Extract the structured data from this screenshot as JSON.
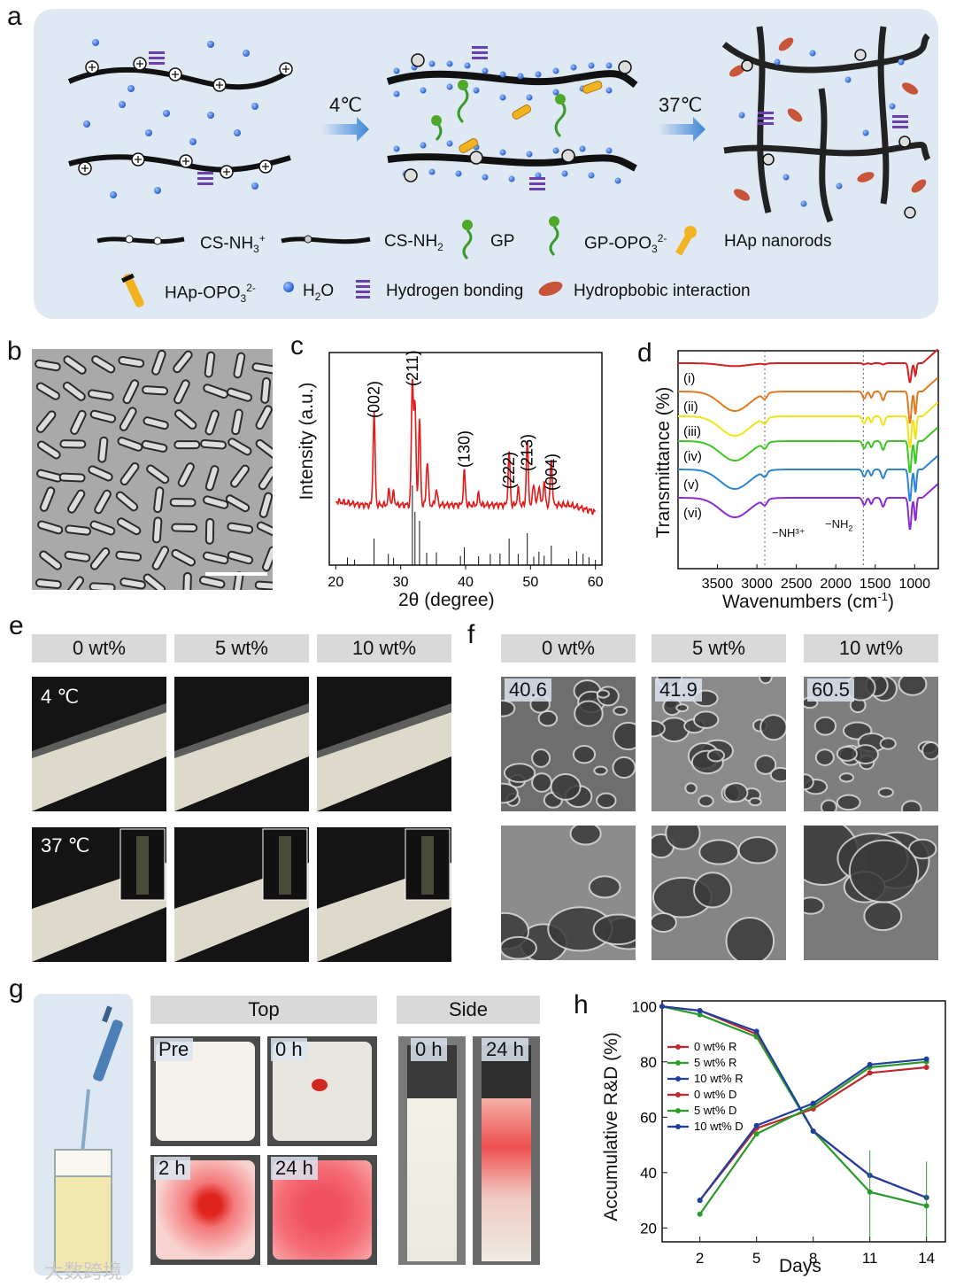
{
  "panels": {
    "a": "a",
    "b": "b",
    "c": "c",
    "d": "d",
    "e": "e",
    "f": "f",
    "g": "g",
    "h": "h"
  },
  "schematic": {
    "step1": "4℃",
    "step2": "37℃",
    "legend": [
      {
        "key": "cs_nh3",
        "label": "CS-NH",
        "sub": "3",
        "sup": "+"
      },
      {
        "key": "cs_nh2",
        "label": "CS-NH",
        "sub": "2",
        "sup": ""
      },
      {
        "key": "gp",
        "label": "GP",
        "sub": "",
        "sup": ""
      },
      {
        "key": "gp_opo3",
        "label": "GP-OPO",
        "sub": "3",
        "sup": "2-"
      },
      {
        "key": "hap",
        "label": "HAp nanorods",
        "sub": "",
        "sup": ""
      },
      {
        "key": "hap_opo3",
        "label": "HAp-OPO",
        "sub": "3",
        "sup": "2-"
      },
      {
        "key": "h2o",
        "label": "H",
        "sub": "2",
        "sup": "",
        "tail": "O"
      },
      {
        "key": "hbond",
        "label": "Hydrogen bonding",
        "sub": "",
        "sup": ""
      },
      {
        "key": "hydrophobic",
        "label": "Hydropbobic interaction",
        "sub": "",
        "sup": ""
      }
    ]
  },
  "xrd": {
    "ylabel": "Intensity (a.u.)",
    "xlabel": "2θ  (degree)",
    "xticks": [
      "20",
      "30",
      "40",
      "50",
      "60"
    ],
    "peaks": [
      {
        "label": "(002)",
        "x": 25.9
      },
      {
        "label": "(211)",
        "x": 31.8
      },
      {
        "label": "(130)",
        "x": 39.8
      },
      {
        "label": "(222)",
        "x": 46.7
      },
      {
        "label": "(213)",
        "x": 49.5
      },
      {
        "label": "(004)",
        "x": 53.2
      }
    ]
  },
  "ftir": {
    "ylabel": "Transmittance (%)",
    "xlabel": "Wavenumbers (cm",
    "xlabel_sup": "-1",
    "xlabel_tail": ")",
    "xticks": [
      "3500",
      "3000",
      "2500",
      "2000",
      "1500",
      "1000"
    ],
    "curves": [
      {
        "label": "(i)",
        "color": "#d62020"
      },
      {
        "label": "(ii)",
        "color": "#e07a24"
      },
      {
        "label": "(iii)",
        "color": "#f2e21a"
      },
      {
        "label": "(iv)",
        "color": "#3ec622"
      },
      {
        "label": "(v)",
        "color": "#2b84d6"
      },
      {
        "label": "(vi)",
        "color": "#8a2bd2"
      }
    ],
    "annot1": "−NH³⁺",
    "annot2": "−NH",
    "annot2_sub": "2"
  },
  "e_panel": {
    "headers": [
      "0 wt%",
      "5 wt%",
      "10 wt%"
    ],
    "row1": "4 ℃",
    "row2": "37 ℃"
  },
  "f_panel": {
    "headers": [
      "0 wt%",
      "5 wt%",
      "10 wt%"
    ],
    "porosity": [
      "40.6",
      "41.9",
      "60.5"
    ]
  },
  "g_panel": {
    "top": "Top",
    "side": "Side",
    "top_labels": [
      "Pre",
      "0 h",
      "2 h",
      "24 h"
    ],
    "side_labels": [
      "0 h",
      "24 h"
    ]
  },
  "chart_data": {
    "type": "line",
    "ylabel": "Accumulative R&D (%)",
    "xlabel": "Days",
    "x": [
      0,
      2,
      5,
      8,
      11,
      14
    ],
    "xticks": [
      2,
      5,
      8,
      11,
      14
    ],
    "yticks": [
      20,
      40,
      60,
      80,
      100
    ],
    "ylim": [
      15,
      102
    ],
    "xlim": [
      0,
      15
    ],
    "series": [
      {
        "name": "0 wt% R",
        "color": "#c0282d",
        "x": [
          0,
          2,
          5,
          8,
          11,
          14
        ],
        "values": [
          100,
          98.5,
          90,
          55,
          39,
          31
        ]
      },
      {
        "name": "5 wt% R",
        "color": "#2a9a2a",
        "x": [
          0,
          2,
          5,
          8,
          11,
          14
        ],
        "values": [
          100,
          97,
          89,
          55,
          33,
          28
        ]
      },
      {
        "name": "10 wt% R",
        "color": "#1f3fa0",
        "x": [
          0,
          2,
          5,
          8,
          11,
          14
        ],
        "values": [
          100,
          98.5,
          91,
          55,
          39,
          31
        ]
      },
      {
        "name": "0 wt% D",
        "color": "#c0282d",
        "x": [
          2,
          5,
          8,
          11,
          14
        ],
        "values": [
          30,
          56,
          63,
          76,
          78
        ]
      },
      {
        "name": "5 wt% D",
        "color": "#2a9a2a",
        "x": [
          2,
          5,
          8,
          11,
          14
        ],
        "values": [
          25,
          54,
          64,
          78,
          80
        ]
      },
      {
        "name": "10 wt% D",
        "color": "#1f3fa0",
        "x": [
          2,
          5,
          8,
          11,
          14
        ],
        "values": [
          30,
          57,
          65,
          79,
          81
        ]
      }
    ]
  },
  "watermark": "大数跨境"
}
